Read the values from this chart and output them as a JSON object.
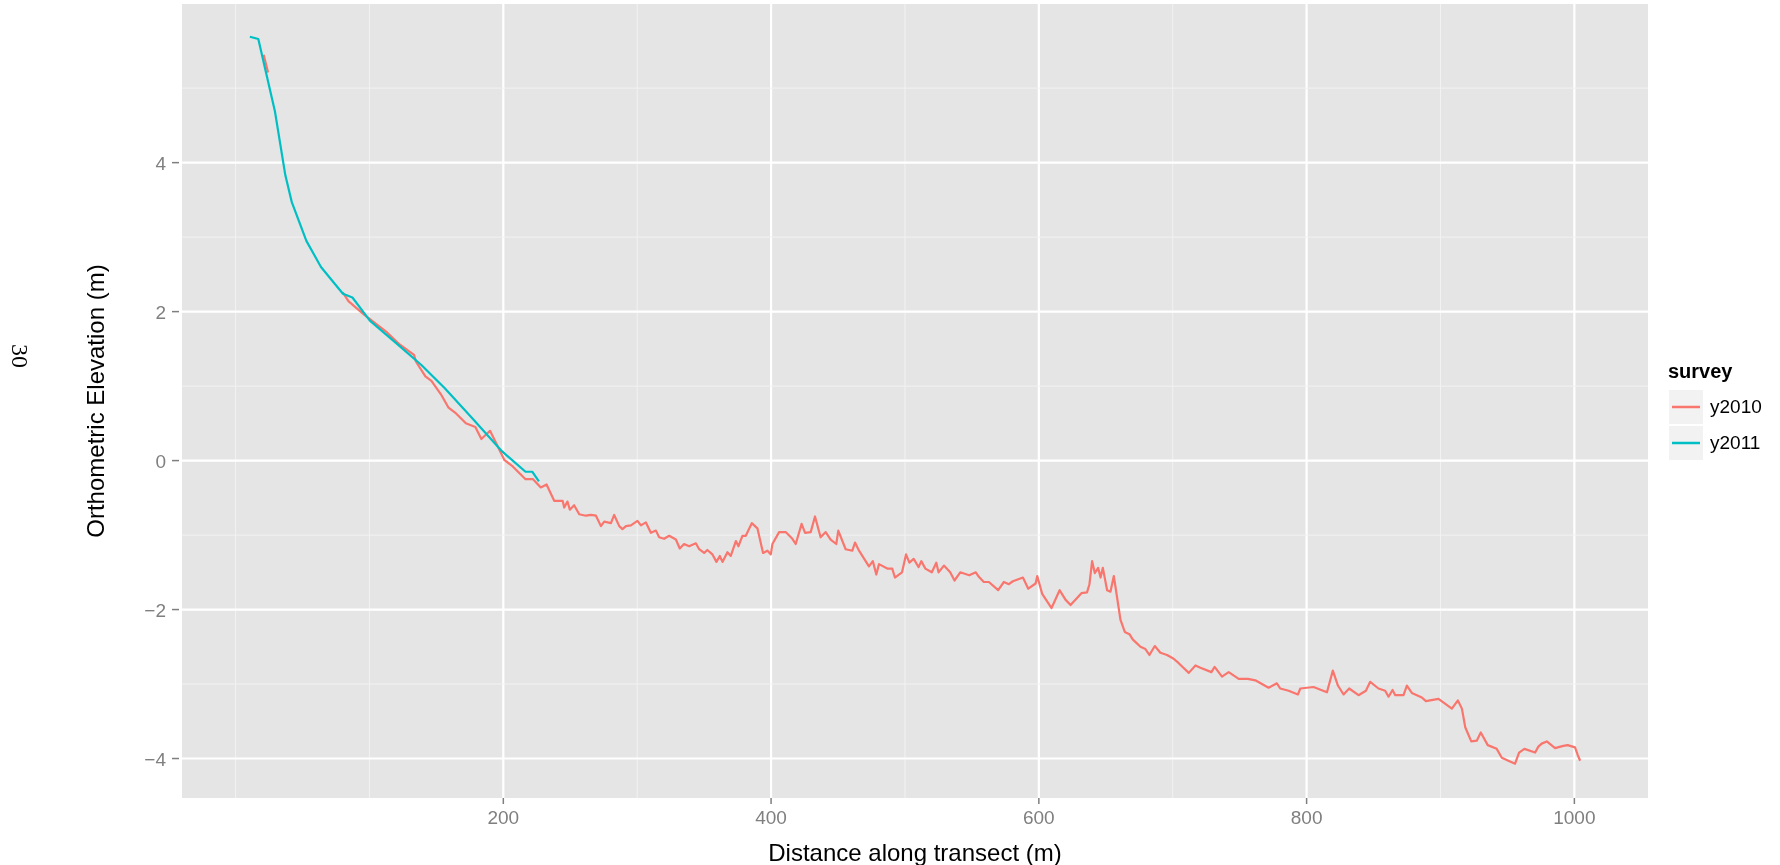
{
  "chart_data": {
    "type": "line",
    "xlabel": "Distance along transect (m)",
    "ylabel": "Orthometric Elevation (m)",
    "legend_title": "survey",
    "legend": "right",
    "grid": true,
    "annotations": [
      "30"
    ],
    "xlim": [
      -40,
      1055
    ],
    "xticks": [
      {
        "value": 0,
        "label": null
      },
      {
        "value": 100,
        "label": null
      },
      200,
      {
        "value": 300,
        "label": null
      },
      400,
      {
        "value": 500,
        "label": null
      },
      600,
      {
        "value": 700,
        "label": null
      },
      800,
      {
        "value": 900,
        "label": null
      },
      1000
    ],
    "ylim": [
      -4.53,
      6.13
    ],
    "yticks": [
      -4,
      {
        "value": -3,
        "label": null
      },
      -2,
      {
        "value": -1,
        "label": null
      },
      0,
      {
        "value": 1,
        "label": null
      },
      2,
      {
        "value": 3,
        "label": null
      },
      4,
      {
        "value": 5,
        "label": null
      }
    ],
    "series": [
      {
        "name": "y2010",
        "color": "#f8766d",
        "x": [
          21,
          24.3,
          29.4,
          37,
          42,
          53,
          64,
          80,
          84.3,
          96,
          113.2,
          121.8,
          133.3,
          134.7,
          141.8,
          146.3,
          153.4,
          159.1,
          164.9,
          172,
          179.1,
          183.6,
          190.1,
          200.7,
          206.5,
          216.6,
          222.2,
          228,
          232.3,
          238,
          244.3,
          245.5,
          247.9,
          249.7,
          252.9,
          256.7,
          261.7,
          265.4,
          269.2,
          272.9,
          275.4,
          280.4,
          282.8,
          286.6,
          289,
          291.6,
          295.3,
          300.2,
          302.8,
          306.5,
          310.2,
          314,
          316.4,
          320.1,
          323.9,
          328.9,
          331.8,
          335,
          338.8,
          343.8,
          346.3,
          350,
          352.4,
          356.2,
          359.2,
          361.7,
          363.7,
          367.4,
          369.9,
          373.7,
          375.6,
          378.6,
          381.1,
          385.6,
          389.8,
          394,
          397.3,
          399.8,
          401,
          406,
          410.9,
          415.9,
          418.4,
          422.8,
          425.4,
          429.6,
          432.8,
          437,
          440.8,
          444.5,
          448.7,
          450.2,
          455.7,
          460.7,
          462.7,
          465.7,
          473.1,
          476,
          478.6,
          480.6,
          486.8,
          490.5,
          492.5,
          497.8,
          500.8,
          503.3,
          506.5,
          510.2,
          512.2,
          515.2,
          520.1,
          523.4,
          525.1,
          529.1,
          533.8,
          537,
          541.3,
          548,
          552.9,
          555.2,
          558.9,
          562.7,
          569.6,
          573.9,
          577.6,
          580.6,
          588.1,
          592.1,
          597.6,
          598.8,
          602.5,
          609.5,
          615.5,
          620,
          623.7,
          631.8,
          636,
          637.8,
          639.8,
          641.8,
          644.3,
          646.1,
          647.8,
          651,
          653.5,
          656,
          661,
          664.2,
          667.7,
          670.1,
          675.9,
          679.6,
          682.6,
          686.6,
          690.8,
          695.8,
          700.7,
          704.5,
          712,
          717,
          720.7,
          728.9,
          731.3,
          736.8,
          741.8,
          749.3,
          756.2,
          761.7,
          771.6,
          777.8,
          780.3,
          786.6,
          793.5,
          795.3,
          805.2,
          815.2,
          819.6,
          823.4,
          827.6,
          831.8,
          838.8,
          844.3,
          847.5,
          853.7,
          858.7,
          861.2,
          864.2,
          866.2,
          872.4,
          874.9,
          878.6,
          886.1,
          889.1,
          898.5,
          908.5,
          913,
          916,
          918.5,
          923,
          927.1,
          930.1,
          935.3,
          942,
          945.8,
          950.7,
          955.7,
          958.7,
          962.7,
          970.7,
          973.1,
          975.6,
          979.4,
          985.6,
          991.8,
          995,
          1000.5,
          1002.5,
          1004.3
        ],
        "values": [
          5.45,
          5.21,
          null,
          null,
          null,
          null,
          null,
          2.26,
          2.14,
          1.96,
          1.72,
          1.57,
          1.42,
          1.33,
          1.13,
          1.07,
          0.89,
          0.71,
          0.63,
          0.5,
          0.45,
          0.29,
          0.4,
          0.01,
          -0.07,
          -0.25,
          -0.25,
          -0.36,
          -0.32,
          -0.54,
          -0.54,
          -0.63,
          -0.55,
          -0.66,
          -0.6,
          -0.72,
          -0.74,
          -0.73,
          -0.74,
          -0.88,
          -0.82,
          -0.84,
          -0.73,
          -0.88,
          -0.92,
          -0.88,
          -0.87,
          -0.81,
          -0.87,
          -0.83,
          -0.97,
          -0.94,
          -1.03,
          -1.05,
          -1.01,
          -1.06,
          -1.18,
          -1.12,
          -1.15,
          -1.11,
          -1.19,
          -1.24,
          -1.2,
          -1.26,
          -1.36,
          -1.28,
          -1.36,
          -1.23,
          -1.28,
          -1.08,
          -1.15,
          -1.01,
          -1.01,
          -0.84,
          -0.91,
          -1.24,
          -1.21,
          -1.26,
          -1.12,
          -0.96,
          -0.96,
          -1.05,
          -1.12,
          -0.85,
          -0.97,
          -0.96,
          -0.75,
          -1.03,
          -0.96,
          -1.06,
          -1.12,
          -0.94,
          -1.19,
          -1.21,
          -1.1,
          -1.21,
          -1.42,
          -1.35,
          -1.53,
          -1.39,
          -1.45,
          -1.45,
          -1.57,
          -1.5,
          -1.26,
          -1.37,
          -1.32,
          -1.43,
          -1.35,
          -1.45,
          -1.5,
          -1.37,
          -1.5,
          -1.41,
          -1.5,
          -1.61,
          -1.5,
          -1.54,
          -1.5,
          -1.56,
          -1.63,
          -1.63,
          -1.74,
          -1.63,
          -1.66,
          -1.62,
          -1.57,
          -1.72,
          -1.65,
          -1.55,
          -1.79,
          -1.98,
          -1.74,
          -1.87,
          -1.94,
          -1.78,
          -1.77,
          -1.66,
          -1.35,
          -1.51,
          -1.44,
          -1.57,
          -1.44,
          -1.74,
          -1.76,
          -1.55,
          -2.14,
          -2.3,
          -2.33,
          -2.4,
          -2.5,
          -2.53,
          -2.61,
          -2.49,
          -2.58,
          -2.61,
          -2.66,
          -2.72,
          -2.85,
          -2.75,
          -2.78,
          -2.84,
          -2.77,
          -2.9,
          -2.84,
          -2.93,
          -2.93,
          -2.95,
          -3.05,
          -2.99,
          -3.06,
          -3.09,
          -3.14,
          -3.06,
          -3.04,
          -3.11,
          -2.82,
          -3.02,
          -3.14,
          -3.06,
          -3.15,
          -3.09,
          -2.97,
          -3.06,
          -3.09,
          -3.17,
          -3.08,
          -3.15,
          -3.15,
          -3.02,
          -3.12,
          -3.18,
          -3.23,
          -3.2,
          -3.33,
          -3.22,
          -3.33,
          -3.58,
          -3.77,
          -3.76,
          -3.65,
          -3.82,
          -3.87,
          -3.99,
          -4.03,
          -4.07,
          -3.92,
          -3.87,
          -3.92,
          -3.84,
          -3.8,
          -3.77,
          -3.86,
          -3.83,
          -3.82,
          -3.85,
          -3.95,
          -4.03
        ]
      },
      {
        "name": "y2011",
        "color": "#00bfc4",
        "x": [
          10.7,
          17,
          29.4,
          37.2,
          42,
          52.9,
          63.8,
          80.2,
          87.3,
          100.3,
          120.4,
          139,
          156.3,
          176.3,
          199.3,
          216.6,
          221.7,
          226.6
        ],
        "values": [
          5.69,
          5.66,
          4.69,
          3.83,
          3.47,
          2.95,
          2.6,
          2.24,
          2.19,
          1.88,
          1.57,
          1.28,
          0.97,
          0.58,
          0.12,
          -0.15,
          -0.15,
          -0.28
        ]
      }
    ]
  }
}
